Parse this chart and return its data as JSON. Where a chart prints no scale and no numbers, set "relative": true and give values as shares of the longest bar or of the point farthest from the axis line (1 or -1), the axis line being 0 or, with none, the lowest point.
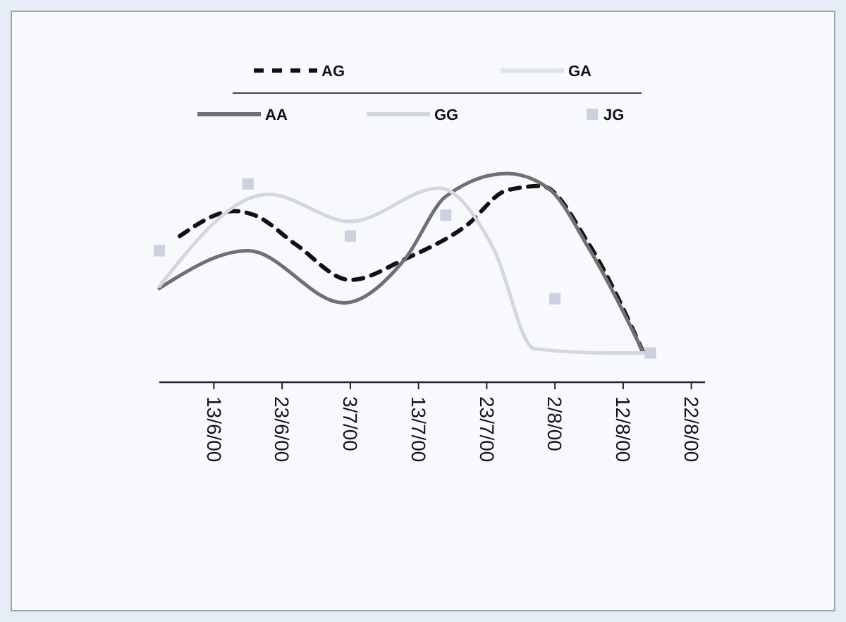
{
  "chart_data": {
    "type": "line",
    "relative": true,
    "legend": "top",
    "xlim": [
      "2000-06-05",
      "2000-08-24"
    ],
    "xticks": [
      {
        "value": "2000-06-13",
        "label": "13/6/00"
      },
      {
        "value": "2000-06-23",
        "label": "23/6/00"
      },
      {
        "value": "2000-07-03",
        "label": "3/7/00"
      },
      {
        "value": "2000-07-13",
        "label": "13/7/00"
      },
      {
        "value": "2000-07-23",
        "label": "23/7/00"
      },
      {
        "value": "2000-08-02",
        "label": "2/8/00"
      },
      {
        "value": "2000-08-12",
        "label": "12/8/00"
      },
      {
        "value": "2000-08-22",
        "label": "22/8/00"
      }
    ],
    "series": [
      {
        "name": "AG",
        "color": "#111111",
        "line_style": "dashed",
        "x": [
          "2000-06-08",
          "2000-06-16",
          "2000-06-19",
          "2000-06-25",
          "2000-07-03",
          "2000-07-11",
          "2000-07-20",
          "2000-07-26",
          "2000-07-31",
          "2000-08-07",
          "2000-08-15"
        ],
        "values": [
          0.7,
          0.82,
          0.8,
          0.66,
          0.49,
          0.59,
          0.75,
          0.92,
          0.94,
          0.66,
          0.14
        ]
      },
      {
        "name": "GA",
        "color": "#dfe3ea"
      },
      {
        "name": "AA",
        "color": "#707070",
        "x": [
          "2000-06-05",
          "2000-06-18",
          "2000-07-02",
          "2000-07-11",
          "2000-07-17",
          "2000-07-26",
          "2000-08-01",
          "2000-08-07",
          "2000-08-15"
        ],
        "values": [
          0.45,
          0.63,
          0.38,
          0.59,
          0.89,
          1,
          0.93,
          0.64,
          0.14
        ]
      },
      {
        "name": "GG",
        "color": "#d4d8de",
        "x": [
          "2000-06-05",
          "2000-06-21",
          "2000-07-03",
          "2000-07-16",
          "2000-07-24",
          "2000-07-30",
          "2000-08-10",
          "2000-08-15"
        ],
        "values": [
          0.46,
          0.9,
          0.77,
          0.93,
          0.64,
          0.16,
          0.14,
          0.14
        ]
      },
      {
        "name": "JG",
        "color": "#ccd0e0",
        "type": "scatter",
        "marker": "square",
        "x": [
          "2000-06-05",
          "2000-06-18",
          "2000-07-03",
          "2000-07-17",
          "2000-08-02",
          "2000-08-16"
        ],
        "values": [
          0.63,
          0.95,
          0.7,
          0.8,
          0.4,
          0.14
        ]
      }
    ]
  }
}
